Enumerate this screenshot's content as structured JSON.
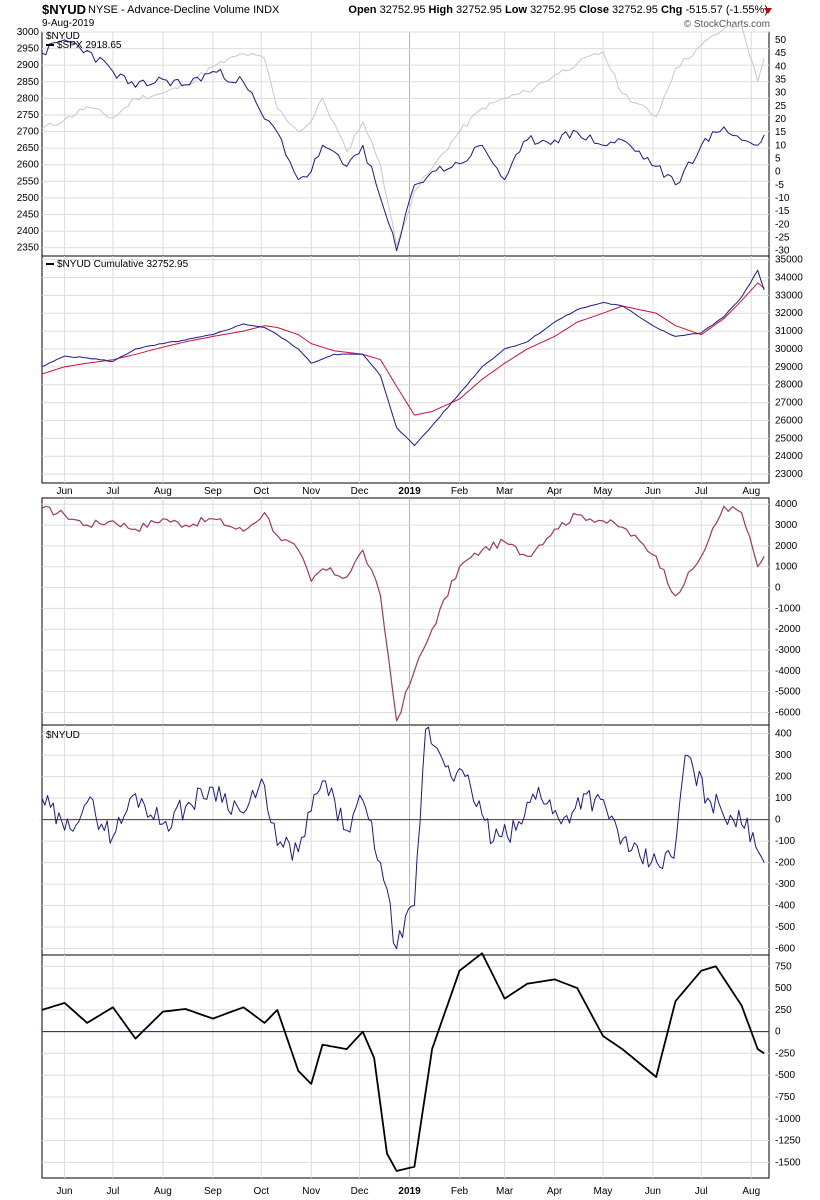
{
  "header": {
    "symbol": "$NYUD",
    "description": "NYSE - Advance-Decline Volume INDX",
    "date": "9-Aug-2019",
    "open_label": "Open",
    "open": "32752.95",
    "high_label": "High",
    "high": "32752.95",
    "low_label": "Low",
    "low": "32752.95",
    "close_label": "Close",
    "close": "32752.95",
    "chg_label": "Chg",
    "chg": "-515.57 (-1.55%)",
    "credit": "© StockCharts.com"
  },
  "colors": {
    "navy": "#1a1a8c",
    "gray": "#c8c8c8",
    "red": "#d0103a",
    "maroon": "#a03860",
    "black": "#000000",
    "grid": "#dcdcdc"
  },
  "chart_data": [
    {
      "type": "line",
      "legend": [
        "$NYUD",
        "$SPX 2918.65"
      ],
      "x": [
        "2018-05-18",
        "2018-06-01",
        "2018-06-15",
        "2018-07-01",
        "2018-07-15",
        "2018-08-01",
        "2018-08-15",
        "2018-09-01",
        "2018-09-20",
        "2018-10-03",
        "2018-10-11",
        "2018-10-24",
        "2018-11-01",
        "2018-11-08",
        "2018-11-23",
        "2018-12-03",
        "2018-12-14",
        "2018-12-24",
        "2019-01-04",
        "2019-01-15",
        "2019-02-01",
        "2019-02-15",
        "2019-03-01",
        "2019-03-15",
        "2019-04-01",
        "2019-04-15",
        "2019-05-01",
        "2019-05-13",
        "2019-06-03",
        "2019-06-15",
        "2019-07-01",
        "2019-07-15",
        "2019-07-26",
        "2019-08-05",
        "2019-08-09"
      ],
      "series": [
        {
          "name": "$NYUD",
          "axis": "right",
          "values": [
            45,
            50,
            46,
            38,
            32,
            35,
            33,
            38,
            34,
            20,
            15,
            -3,
            0,
            10,
            2,
            10,
            -10,
            -30,
            -5,
            0,
            3,
            10,
            -3,
            12,
            12,
            15,
            10,
            12,
            2,
            -5,
            10,
            17,
            12,
            10,
            14
          ]
        },
        {
          "name": "$SPX 2918.65",
          "axis": "left",
          "values": [
            2710,
            2735,
            2775,
            2740,
            2800,
            2815,
            2840,
            2895,
            2935,
            2920,
            2770,
            2700,
            2730,
            2800,
            2640,
            2730,
            2600,
            2355,
            2520,
            2590,
            2700,
            2770,
            2800,
            2820,
            2870,
            2905,
            2940,
            2815,
            2745,
            2890,
            2960,
            3010,
            3020,
            2850,
            2920
          ]
        }
      ],
      "left_axis": {
        "min": 2325,
        "max": 3000,
        "ticks": [
          3000,
          2950,
          2900,
          2850,
          2800,
          2750,
          2700,
          2650,
          2600,
          2550,
          2500,
          2450,
          2400,
          2350
        ]
      },
      "right_axis": {
        "min": -32,
        "max": 53,
        "ticks": [
          50,
          45,
          40,
          35,
          30,
          25,
          20,
          15,
          10,
          5,
          0,
          -5,
          -10,
          -15,
          -20,
          -25,
          -30
        ]
      },
      "grid": true
    },
    {
      "type": "line",
      "legend": [
        "$NYUD Cumulative 32752.95"
      ],
      "x": [
        "2018-05-18",
        "2018-06-01",
        "2018-06-15",
        "2018-07-01",
        "2018-07-15",
        "2018-08-01",
        "2018-08-15",
        "2018-09-01",
        "2018-09-20",
        "2018-10-03",
        "2018-10-11",
        "2018-10-24",
        "2018-11-01",
        "2018-11-15",
        "2018-12-03",
        "2018-12-14",
        "2018-12-24",
        "2019-01-04",
        "2019-01-15",
        "2019-02-01",
        "2019-02-15",
        "2019-03-01",
        "2019-03-15",
        "2019-04-01",
        "2019-04-15",
        "2019-05-01",
        "2019-05-13",
        "2019-06-03",
        "2019-06-15",
        "2019-07-01",
        "2019-07-15",
        "2019-07-26",
        "2019-08-05",
        "2019-08-09"
      ],
      "series": [
        {
          "name": "cumulative",
          "values": [
            29000,
            29600,
            29500,
            29300,
            30000,
            30300,
            30500,
            30800,
            31400,
            31200,
            30800,
            30000,
            29200,
            29700,
            29700,
            28500,
            25600,
            24600,
            25700,
            27500,
            29000,
            30000,
            30400,
            31500,
            32200,
            32600,
            32400,
            31200,
            30700,
            30900,
            31800,
            32900,
            34400,
            33300
          ]
        },
        {
          "name": "moving average",
          "values": [
            28600,
            29000,
            29200,
            29400,
            29700,
            30100,
            30400,
            30700,
            31000,
            31300,
            31200,
            30800,
            30300,
            29900,
            29700,
            29400,
            27900,
            26300,
            26500,
            27200,
            28300,
            29200,
            30000,
            30700,
            31500,
            32000,
            32400,
            32000,
            31300,
            30800,
            31700,
            32700,
            33700,
            33400
          ]
        }
      ],
      "axis": {
        "min": 22500,
        "max": 35200,
        "ticks": [
          35000,
          34000,
          33000,
          32000,
          31000,
          30000,
          29000,
          28000,
          27000,
          26000,
          25000,
          24000,
          23000
        ]
      },
      "grid": true
    },
    {
      "type": "line",
      "legend": [],
      "x": [
        "2018-05-18",
        "2018-06-01",
        "2018-06-15",
        "2018-07-01",
        "2018-07-15",
        "2018-08-01",
        "2018-08-15",
        "2018-09-01",
        "2018-09-20",
        "2018-10-03",
        "2018-10-11",
        "2018-10-24",
        "2018-11-01",
        "2018-11-08",
        "2018-11-23",
        "2018-12-03",
        "2018-12-14",
        "2018-12-24",
        "2019-01-04",
        "2019-01-15",
        "2019-02-01",
        "2019-02-15",
        "2019-03-01",
        "2019-03-15",
        "2019-04-01",
        "2019-04-15",
        "2019-05-01",
        "2019-05-13",
        "2019-06-03",
        "2019-06-15",
        "2019-07-01",
        "2019-07-15",
        "2019-07-26",
        "2019-08-05",
        "2019-08-09"
      ],
      "series": [
        {
          "name": "line",
          "values": [
            3800,
            3500,
            3000,
            3200,
            2800,
            3300,
            3000,
            3300,
            2700,
            3600,
            2500,
            1800,
            300,
            900,
            500,
            1800,
            -400,
            -6400,
            -4000,
            -2000,
            1000,
            1800,
            2200,
            1500,
            2800,
            3500,
            3200,
            2900,
            1500,
            -400,
            1500,
            3900,
            3600,
            1000,
            1500
          ]
        }
      ],
      "axis": {
        "min": -6600,
        "max": 4300,
        "ticks": [
          4000,
          3000,
          2000,
          1000,
          0,
          -1000,
          -2000,
          -3000,
          -4000,
          -5000,
          -6000
        ]
      },
      "grid": true
    },
    {
      "type": "line",
      "legend": [
        "$NYUD"
      ],
      "x": [
        "2018-05-18",
        "2018-06-01",
        "2018-06-15",
        "2018-07-01",
        "2018-07-15",
        "2018-08-01",
        "2018-08-15",
        "2018-09-01",
        "2018-09-20",
        "2018-10-03",
        "2018-10-11",
        "2018-10-24",
        "2018-11-01",
        "2018-11-08",
        "2018-11-23",
        "2018-12-03",
        "2018-12-14",
        "2018-12-24",
        "2019-01-04",
        "2019-01-11",
        "2019-01-25",
        "2019-02-08",
        "2019-02-22",
        "2019-03-08",
        "2019-03-22",
        "2019-04-05",
        "2019-04-19",
        "2019-05-03",
        "2019-05-17",
        "2019-05-31",
        "2019-06-14",
        "2019-06-21",
        "2019-07-05",
        "2019-07-19",
        "2019-08-02",
        "2019-08-09"
      ],
      "series": [
        {
          "name": "$NYUD",
          "values": [
            100,
            -50,
            80,
            -80,
            120,
            -20,
            60,
            150,
            30,
            160,
            -120,
            -150,
            40,
            180,
            -50,
            90,
            -200,
            -600,
            -400,
            420,
            250,
            150,
            -100,
            -50,
            150,
            -20,
            120,
            50,
            -150,
            -200,
            -180,
            300,
            100,
            20,
            -60,
            -200
          ]
        }
      ],
      "zero_line": 0,
      "axis": {
        "min": -630,
        "max": 440,
        "ticks": [
          400,
          300,
          200,
          100,
          0,
          -100,
          -200,
          -300,
          -400,
          -500,
          -600
        ]
      },
      "grid": true
    },
    {
      "type": "line",
      "legend": [],
      "x": [
        "2018-05-18",
        "2018-06-01",
        "2018-06-15",
        "2018-07-01",
        "2018-07-15",
        "2018-08-01",
        "2018-08-15",
        "2018-09-01",
        "2018-09-20",
        "2018-10-03",
        "2018-10-11",
        "2018-10-24",
        "2018-11-01",
        "2018-11-08",
        "2018-11-23",
        "2018-12-03",
        "2018-12-10",
        "2018-12-18",
        "2018-12-24",
        "2019-01-04",
        "2019-01-15",
        "2019-02-01",
        "2019-02-15",
        "2019-03-01",
        "2019-03-15",
        "2019-04-01",
        "2019-04-15",
        "2019-05-01",
        "2019-05-13",
        "2019-06-03",
        "2019-06-15",
        "2019-07-01",
        "2019-07-10",
        "2019-07-26",
        "2019-08-05",
        "2019-08-09"
      ],
      "series": [
        {
          "name": "line",
          "values": [
            250,
            330,
            100,
            280,
            -80,
            230,
            260,
            150,
            280,
            100,
            250,
            -450,
            -600,
            -150,
            -200,
            0,
            -300,
            -1400,
            -1600,
            -1550,
            -200,
            700,
            900,
            380,
            550,
            600,
            500,
            -50,
            -200,
            -520,
            350,
            700,
            750,
            300,
            -200,
            -250
          ]
        }
      ],
      "zero_line": 0,
      "axis": {
        "min": -1680,
        "max": 880,
        "ticks": [
          750,
          500,
          250,
          0,
          -250,
          -500,
          -750,
          -1000,
          -1250,
          -1500
        ]
      },
      "grid": true
    }
  ],
  "time_axis": {
    "start": "2018-05-18",
    "end": "2019-08-12",
    "labels": [
      {
        "label": "Jun",
        "date": "2018-06-01",
        "major": false
      },
      {
        "label": "Jul",
        "date": "2018-07-01",
        "major": false
      },
      {
        "label": "Aug",
        "date": "2018-08-01",
        "major": false
      },
      {
        "label": "Sep",
        "date": "2018-09-01",
        "major": false
      },
      {
        "label": "Oct",
        "date": "2018-10-01",
        "major": false
      },
      {
        "label": "Nov",
        "date": "2018-11-01",
        "major": false
      },
      {
        "label": "Dec",
        "date": "2018-12-01",
        "major": false
      },
      {
        "label": "2019",
        "date": "2019-01-01",
        "major": true
      },
      {
        "label": "Feb",
        "date": "2019-02-01",
        "major": false
      },
      {
        "label": "Mar",
        "date": "2019-03-01",
        "major": false
      },
      {
        "label": "Apr",
        "date": "2019-04-01",
        "major": false
      },
      {
        "label": "May",
        "date": "2019-05-01",
        "major": false
      },
      {
        "label": "Jun",
        "date": "2019-06-01",
        "major": false
      },
      {
        "label": "Jul",
        "date": "2019-07-01",
        "major": false
      },
      {
        "label": "Aug",
        "date": "2019-08-01",
        "major": false
      }
    ]
  }
}
